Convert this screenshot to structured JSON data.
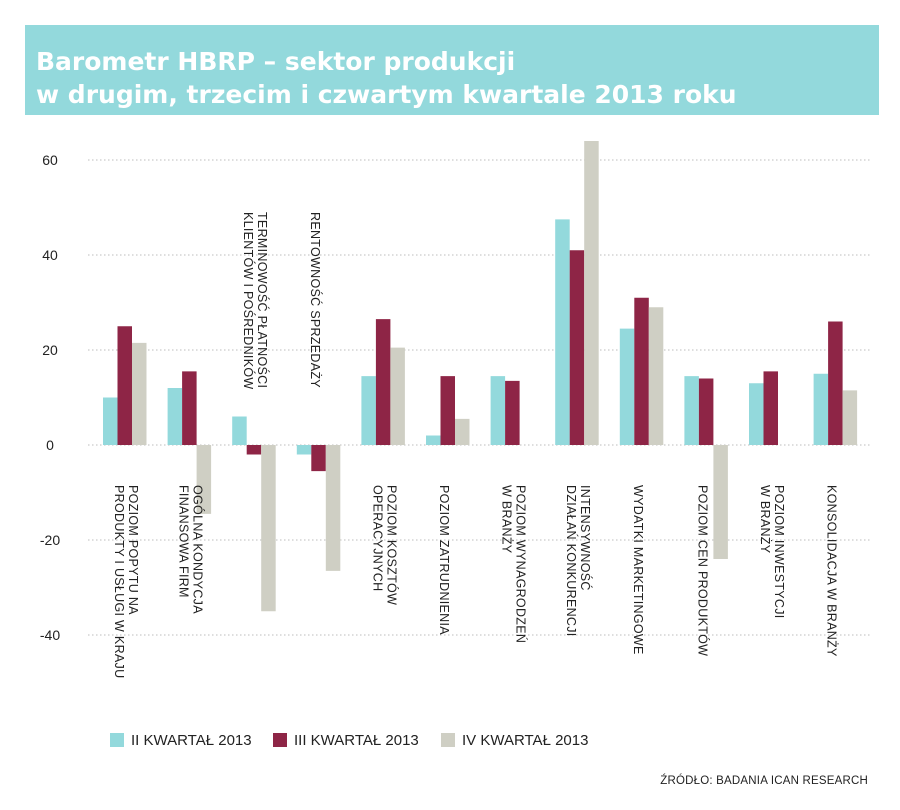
{
  "title": {
    "line1": "Barometr HBRP – sektor produkcji",
    "line2": "w drugim, trzecim i czwartym kwartale 2013 roku"
  },
  "source": "ŹRÓDŁO: BADANIA ICAN RESEARCH",
  "colors": {
    "q2": "#93d9dc",
    "q3": "#8e2546",
    "q4": "#cfcfc4",
    "title_bg": "#93d9dc",
    "grid": "#bdbdbd"
  },
  "chart_data": {
    "type": "bar",
    "title": "Barometr HBRP – sektor produkcji w drugim, trzecim i czwartym kwartale 2013 roku",
    "ylim": [
      -40,
      60
    ],
    "yticks": [
      60,
      40,
      20,
      0,
      -20,
      -40
    ],
    "grid": true,
    "legend": "bottom",
    "categories": [
      "POZIOM POPYTU NA PRODUKTY I USŁUGI W KRAJU",
      "OGÓLNA KONDYCJA FINANSOWA FIRM",
      "TERMINOWOŚĆ PŁATNOŚCI KLIENTÓW I POŚREDNIKÓW",
      "RENTOWNOŚĆ SPRZEDAŻY",
      "POZIOM KOSZTÓW OPERACYJNYCH",
      "POZIOM ZATRUDNIENIA",
      "POZIOM WYNAGRODZEŃ W BRANŻY",
      "INTENSYWNOŚĆ DZIAŁAŃ KONKURENCJI",
      "WYDATKI MARKETINGOWE",
      "POZIOM CEN PRODUKTÓW",
      "POZIOM INWESTYCJI W BRANŻY",
      "KONSOLIDACJA W BRANŻY"
    ],
    "label_lines": [
      [
        "POZIOM POPYTU NA",
        "PRODUKTY I USŁUGI W KRAJU"
      ],
      [
        "OGÓLNA KONDYCJA",
        "FINANSOWA FIRM"
      ],
      [
        "TERMINOWOŚĆ PŁATNOŚCI",
        "KLIENTÓW I POŚREDNIKÓW"
      ],
      [
        "RENTOWNOŚĆ SPRZEDAŻY"
      ],
      [
        "POZIOM KOSZTÓW",
        "OPERACYJNYCH"
      ],
      [
        "POZIOM ZATRUDNIENIA"
      ],
      [
        "POZIOM WYNAGRODZEŃ",
        "W BRANŻY"
      ],
      [
        "INTENSYWNOŚĆ",
        "DZIAŁAŃ KONKURENCJI"
      ],
      [
        "WYDATKI MARKETINGOWE"
      ],
      [
        "POZIOM CEN PRODUKTÓW"
      ],
      [
        "POZIOM INWESTYCJI",
        "W BRANŻY"
      ],
      [
        "KONSOLIDACJA W BRANŻY"
      ]
    ],
    "series": [
      {
        "name": "II KWARTAŁ 2013",
        "key": "q2",
        "values": [
          10,
          12,
          6,
          -2,
          14.5,
          2,
          14.5,
          47.5,
          24.5,
          14.5,
          13,
          15
        ]
      },
      {
        "name": "III KWARTAŁ 2013",
        "key": "q3",
        "values": [
          25,
          15.5,
          -2,
          -5.5,
          26.5,
          14.5,
          13.5,
          41,
          31,
          14,
          15.5,
          26
        ]
      },
      {
        "name": "IV KWARTAŁ 2013",
        "key": "q4",
        "values": [
          21.5,
          -14.5,
          -35,
          -26.5,
          20.5,
          5.5,
          0,
          64,
          29,
          -24,
          0,
          11.5
        ]
      }
    ]
  },
  "legend": [
    {
      "label": "II KWARTAŁ 2013"
    },
    {
      "label": "III KWARTAŁ 2013"
    },
    {
      "label": "IV KWARTAŁ 2013"
    }
  ]
}
